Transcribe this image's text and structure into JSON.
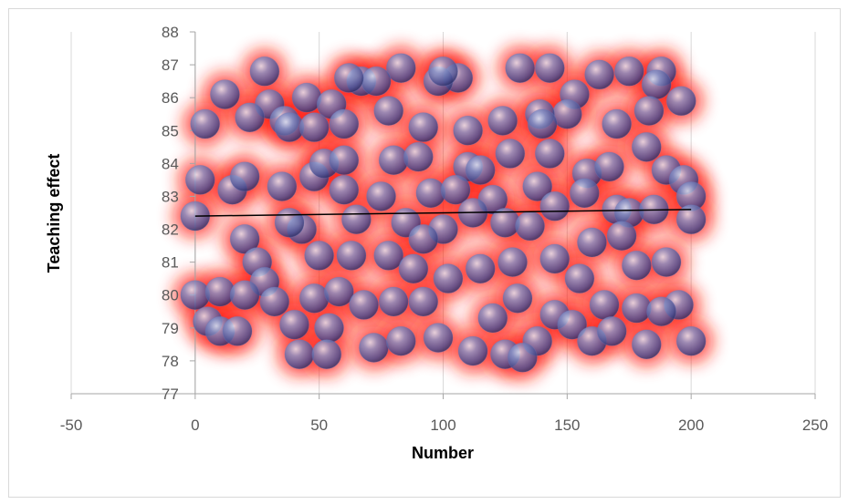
{
  "chart_data": {
    "type": "scatter",
    "xlabel": "Number",
    "ylabel": "Teaching effect",
    "xlim": [
      -50,
      250
    ],
    "ylim": [
      77,
      88
    ],
    "xticks": [
      -50,
      0,
      50,
      100,
      150,
      200,
      250
    ],
    "yticks": [
      77,
      78,
      79,
      80,
      81,
      82,
      83,
      84,
      85,
      86,
      87,
      88
    ],
    "grid": true,
    "glow_color": "#ff1a10",
    "series": [
      {
        "color": "#6a78b8",
        "x": [
          28,
          12,
          4,
          83,
          106,
          131,
          143,
          163,
          175,
          188,
          196,
          153,
          78,
          67,
          73,
          45,
          55,
          62,
          98,
          100,
          170,
          124,
          150,
          139,
          186,
          183,
          30,
          22,
          36,
          38,
          48,
          60,
          110,
          92,
          140,
          2,
          15,
          20,
          35,
          48,
          52,
          60,
          80,
          90,
          110,
          115,
          127,
          143,
          158,
          167,
          182,
          190,
          197,
          157,
          170,
          175,
          200,
          185,
          60,
          75,
          95,
          105,
          138,
          145,
          120,
          0,
          20,
          43,
          38,
          65,
          85,
          100,
          112,
          125,
          135,
          160,
          172,
          200,
          92,
          25,
          50,
          63,
          78,
          88,
          102,
          115,
          128,
          145,
          155,
          178,
          190,
          28,
          0,
          10,
          20,
          32,
          48,
          58,
          68,
          80,
          92,
          120,
          130,
          145,
          165,
          178,
          195,
          188,
          5,
          10,
          17,
          40,
          54,
          72,
          83,
          98,
          112,
          125,
          138,
          152,
          160,
          168,
          182,
          200,
          42,
          53,
          132
        ],
        "values": [
          86.8,
          86.1,
          85.2,
          86.9,
          86.6,
          86.9,
          86.9,
          86.7,
          86.8,
          86.8,
          85.9,
          86.1,
          85.6,
          86.5,
          86.5,
          86.0,
          85.8,
          86.6,
          86.5,
          86.8,
          85.2,
          85.3,
          85.5,
          85.5,
          86.4,
          85.6,
          85.8,
          85.4,
          85.3,
          85.1,
          85.1,
          85.2,
          85.0,
          85.1,
          85.2,
          83.5,
          83.2,
          83.6,
          83.3,
          83.6,
          84.0,
          84.1,
          84.1,
          84.2,
          83.9,
          83.8,
          84.3,
          84.3,
          83.7,
          83.9,
          84.5,
          83.8,
          83.5,
          83.1,
          82.6,
          82.5,
          83.0,
          82.6,
          83.2,
          83.0,
          83.1,
          83.2,
          83.3,
          82.7,
          82.9,
          82.4,
          81.7,
          82.0,
          82.2,
          82.3,
          82.2,
          82.0,
          82.5,
          82.2,
          82.1,
          81.6,
          81.8,
          82.3,
          81.7,
          81.0,
          81.2,
          81.2,
          81.2,
          80.8,
          80.5,
          80.8,
          81.0,
          81.1,
          80.5,
          80.9,
          81.0,
          80.4,
          80.0,
          80.1,
          80.0,
          79.8,
          79.9,
          80.1,
          79.7,
          79.8,
          79.8,
          79.3,
          79.9,
          79.4,
          79.7,
          79.6,
          79.7,
          79.5,
          79.2,
          78.9,
          78.9,
          79.1,
          79.0,
          78.4,
          78.6,
          78.7,
          78.3,
          78.2,
          78.6,
          79.1,
          78.6,
          78.9,
          78.5,
          78.6,
          78.2,
          78.2,
          78.1
        ]
      },
      {
        "type": "line",
        "color": "#000000",
        "x": [
          0,
          200
        ],
        "values": [
          82.4,
          82.6
        ]
      }
    ]
  }
}
